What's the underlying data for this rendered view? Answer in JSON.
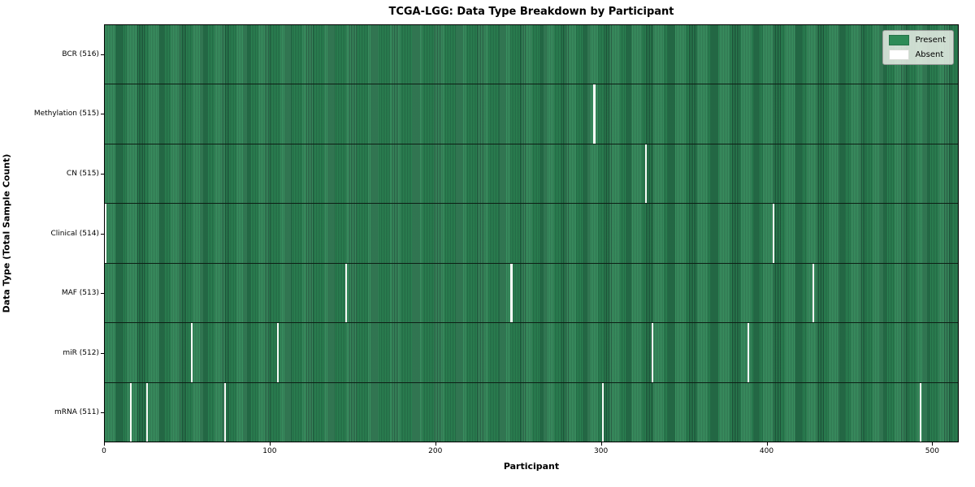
{
  "title": "TCGA-LGG: Data Type Breakdown by Participant",
  "xlabel": "Participant",
  "ylabel": "Data Type (Total Sample Count)",
  "legend": {
    "present_label": "Present",
    "absent_label": "Absent",
    "position": "upper right"
  },
  "colors": {
    "present": "#2e8b57",
    "present_edge": "#1d5038",
    "absent": "#ffffff",
    "legend_bg": "#eaeee7"
  },
  "chart_data": {
    "type": "heatmap",
    "title": "TCGA-LGG: Data Type Breakdown by Participant",
    "xlabel": "Participant",
    "ylabel": "Data Type (Total Sample Count)",
    "legend": [
      "Present",
      "Absent"
    ],
    "legend_position": "upper right",
    "grid": false,
    "n_participants": 516,
    "xlim": [
      0,
      516
    ],
    "x_ticks": [
      0,
      100,
      200,
      300,
      400,
      500
    ],
    "rows": [
      {
        "name": "BCR",
        "label": "BCR (516)",
        "total": 516,
        "absent_participants": []
      },
      {
        "name": "Methylation",
        "label": "Methylation (515)",
        "total": 515,
        "absent_participants": [
          295
        ]
      },
      {
        "name": "CN",
        "label": "CN (515)",
        "total": 515,
        "absent_participants": [
          326
        ]
      },
      {
        "name": "Clinical",
        "label": "Clinical (514)",
        "total": 514,
        "absent_participants": [
          0,
          403
        ]
      },
      {
        "name": "MAF",
        "label": "MAF (513)",
        "total": 513,
        "absent_participants": [
          145,
          245,
          427
        ]
      },
      {
        "name": "miR",
        "label": "miR (512)",
        "total": 512,
        "absent_participants": [
          52,
          104,
          330,
          388
        ]
      },
      {
        "name": "mRNA",
        "label": "mRNA (511)",
        "total": 511,
        "absent_participants": [
          15,
          25,
          72,
          300,
          492
        ]
      }
    ]
  }
}
